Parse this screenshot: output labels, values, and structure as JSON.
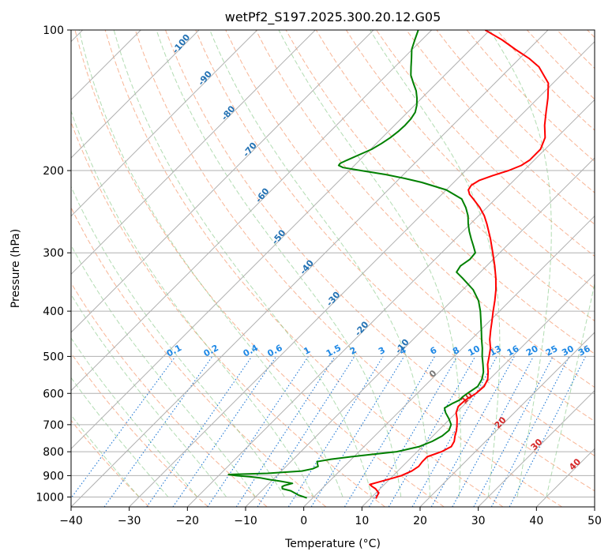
{
  "chart_data": {
    "type": "line",
    "title": "wetPf2_S197.2025.300.20.12.G05",
    "xlabel": "Temperature (°C)",
    "ylabel": "Pressure (hPa)",
    "xlim": [
      -40,
      50
    ],
    "ylim": [
      1050,
      100
    ],
    "yscale": "log",
    "skew": "skew-T log-p",
    "grid": true,
    "x_ticks": [
      -40,
      -30,
      -20,
      -10,
      0,
      10,
      20,
      30,
      40,
      50
    ],
    "x_tick_labels": [
      "−40",
      "−30",
      "−20",
      "−10",
      "0",
      "10",
      "20",
      "30",
      "40",
      "50"
    ],
    "y_ticks": [
      100,
      200,
      300,
      400,
      500,
      600,
      700,
      800,
      900,
      1000
    ],
    "y_tick_labels": [
      "100",
      "200",
      "300",
      "400",
      "500",
      "600",
      "700",
      "800",
      "900",
      "1000"
    ],
    "series": [
      {
        "role": "temperature",
        "color": "#ff0000",
        "points": [
          [
            1008,
            11.0
          ],
          [
            1000,
            10.8
          ],
          [
            980,
            10.5
          ],
          [
            960,
            9.2
          ],
          [
            950,
            8.3
          ],
          [
            940,
            7.5
          ],
          [
            930,
            8.5
          ],
          [
            910,
            10.5
          ],
          [
            900,
            11.4
          ],
          [
            880,
            12.4
          ],
          [
            860,
            12.8
          ],
          [
            840,
            12.6
          ],
          [
            820,
            12.6
          ],
          [
            800,
            14.2
          ],
          [
            780,
            15.0
          ],
          [
            760,
            14.6
          ],
          [
            740,
            13.8
          ],
          [
            720,
            13.1
          ],
          [
            700,
            12.2
          ],
          [
            680,
            11.2
          ],
          [
            660,
            10.0
          ],
          [
            640,
            9.3
          ],
          [
            620,
            9.4
          ],
          [
            600,
            10.1
          ],
          [
            580,
            10.3
          ],
          [
            560,
            9.7
          ],
          [
            540,
            8.5
          ],
          [
            520,
            7.1
          ],
          [
            500,
            6.0
          ],
          [
            480,
            4.8
          ],
          [
            460,
            3.2
          ],
          [
            440,
            1.8
          ],
          [
            420,
            0.4
          ],
          [
            400,
            -1.1
          ],
          [
            380,
            -2.6
          ],
          [
            360,
            -4.3
          ],
          [
            340,
            -6.3
          ],
          [
            320,
            -8.6
          ],
          [
            300,
            -11.2
          ],
          [
            280,
            -14.0
          ],
          [
            260,
            -17.2
          ],
          [
            250,
            -19.0
          ],
          [
            240,
            -21.2
          ],
          [
            230,
            -23.8
          ],
          [
            225,
            -25.2
          ],
          [
            220,
            -26.2
          ],
          [
            215,
            -26.5
          ],
          [
            210,
            -26.0
          ],
          [
            205,
            -24.5
          ],
          [
            200,
            -22.6
          ],
          [
            195,
            -21.3
          ],
          [
            190,
            -20.8
          ],
          [
            180,
            -20.8
          ],
          [
            170,
            -22.0
          ],
          [
            160,
            -24.2
          ],
          [
            150,
            -26.2
          ],
          [
            140,
            -28.3
          ],
          [
            130,
            -30.8
          ],
          [
            120,
            -35.2
          ],
          [
            115,
            -38.4
          ],
          [
            110,
            -42.3
          ],
          [
            105,
            -46.2
          ],
          [
            100,
            -50.8
          ]
        ]
      },
      {
        "role": "dewpoint",
        "color": "#008000",
        "points": [
          [
            1005,
            -1.0
          ],
          [
            990,
            -3.0
          ],
          [
            970,
            -5.0
          ],
          [
            960,
            -6.8
          ],
          [
            950,
            -7.2
          ],
          [
            945,
            -7.0
          ],
          [
            935,
            -6.0
          ],
          [
            925,
            -8.5
          ],
          [
            918,
            -10.5
          ],
          [
            910,
            -12.5
          ],
          [
            905,
            -14.5
          ],
          [
            900,
            -17.0
          ],
          [
            895,
            -18.5
          ],
          [
            890,
            -12.0
          ],
          [
            880,
            -6.5
          ],
          [
            870,
            -5.0
          ],
          [
            860,
            -4.5
          ],
          [
            850,
            -5.0
          ],
          [
            840,
            -5.5
          ],
          [
            830,
            -3.5
          ],
          [
            820,
            -0.5
          ],
          [
            810,
            3.0
          ],
          [
            800,
            6.5
          ],
          [
            790,
            8.0
          ],
          [
            780,
            9.5
          ],
          [
            760,
            10.8
          ],
          [
            740,
            11.6
          ],
          [
            720,
            11.8
          ],
          [
            700,
            11.2
          ],
          [
            680,
            9.8
          ],
          [
            660,
            8.2
          ],
          [
            645,
            7.2
          ],
          [
            630,
            7.8
          ],
          [
            620,
            8.4
          ],
          [
            610,
            8.4
          ],
          [
            600,
            8.6
          ],
          [
            580,
            9.2
          ],
          [
            560,
            8.7
          ],
          [
            540,
            7.7
          ],
          [
            520,
            6.3
          ],
          [
            500,
            4.8
          ],
          [
            480,
            3.4
          ],
          [
            460,
            1.8
          ],
          [
            440,
            0.2
          ],
          [
            420,
            -1.5
          ],
          [
            400,
            -3.3
          ],
          [
            380,
            -5.4
          ],
          [
            360,
            -8.2
          ],
          [
            340,
            -12.0
          ],
          [
            330,
            -14.1
          ],
          [
            320,
            -14.5
          ],
          [
            310,
            -14.0
          ],
          [
            300,
            -14.2
          ],
          [
            290,
            -15.7
          ],
          [
            280,
            -17.3
          ],
          [
            270,
            -18.9
          ],
          [
            260,
            -20.4
          ],
          [
            250,
            -21.8
          ],
          [
            240,
            -23.6
          ],
          [
            230,
            -25.8
          ],
          [
            220,
            -30.0
          ],
          [
            212,
            -35.5
          ],
          [
            208,
            -39.0
          ],
          [
            204,
            -43.0
          ],
          [
            200,
            -48.0
          ],
          [
            197,
            -51.6
          ],
          [
            195,
            -52.7
          ],
          [
            193,
            -52.8
          ],
          [
            190,
            -52.2
          ],
          [
            185,
            -51.0
          ],
          [
            180,
            -49.8
          ],
          [
            175,
            -49.1
          ],
          [
            170,
            -48.6
          ],
          [
            165,
            -48.3
          ],
          [
            160,
            -48.2
          ],
          [
            155,
            -48.3
          ],
          [
            150,
            -48.7
          ],
          [
            145,
            -49.6
          ],
          [
            140,
            -50.8
          ],
          [
            135,
            -52.2
          ],
          [
            130,
            -54.0
          ],
          [
            125,
            -55.8
          ],
          [
            120,
            -57.2
          ],
          [
            115,
            -58.6
          ],
          [
            110,
            -60.1
          ],
          [
            105,
            -61.2
          ],
          [
            100,
            -62.3
          ]
        ]
      }
    ],
    "mixing_ratio_labels": [
      "0.1",
      "0.2",
      "0.4",
      "0.6",
      "1",
      "1.5",
      "2",
      "3",
      "4",
      "6",
      "8",
      "10",
      "13",
      "16",
      "20",
      "25",
      "30",
      "36"
    ],
    "dry_adiabat_labels": [
      "-100",
      "-90",
      "-80",
      "-70",
      "-60",
      "-50",
      "-40",
      "-30",
      "-20",
      "-10"
    ],
    "moist_adiabat_labels": [
      "0",
      "10",
      "20",
      "30",
      "40"
    ]
  }
}
